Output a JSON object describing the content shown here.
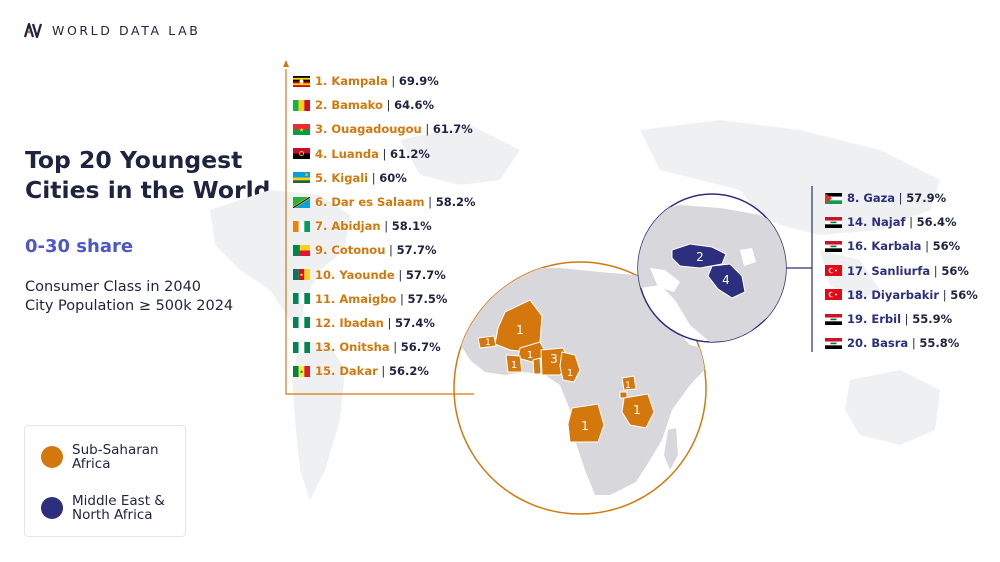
{
  "brand": {
    "name": "WORLD DATA LAB"
  },
  "heading": {
    "title": "Top 20 Youngest Cities in the World",
    "subtitle": "0-30 share"
  },
  "description": {
    "line1": "Consumer Class in 2040",
    "line2": "City Population ≥ 500k 2024"
  },
  "legend": [
    {
      "label": "Sub-Saharan Africa",
      "color": "#d4780d"
    },
    {
      "label": "Middle East & North Africa",
      "color": "#2b2f7e"
    }
  ],
  "colors": {
    "africa": "#d4780d",
    "mena": "#2b2f7e",
    "land": "#d8d8dc",
    "text": "#1e2340",
    "subtitle": "#4d57c9"
  },
  "map_counts": {
    "mali": "1",
    "coastal_west_africa": [
      "1",
      "1",
      "1"
    ],
    "nigeria": "3",
    "cameroon": "1",
    "angola": "1",
    "rwanda": "1",
    "tanzania": "1",
    "turkey": "2",
    "iraq": "4"
  },
  "sub_saharan_cities": [
    {
      "label": "1. Kampala",
      "value": "69.9%",
      "flag": "uganda"
    },
    {
      "label": "2. Bamako",
      "value": "64.6%",
      "flag": "mali"
    },
    {
      "label": "3. Ouagadougou",
      "value": "61.7%",
      "flag": "burkina-faso"
    },
    {
      "label": "4. Luanda",
      "value": "61.2%",
      "flag": "angola"
    },
    {
      "label": "5. Kigali",
      "value": "60%",
      "flag": "rwanda"
    },
    {
      "label": "6. Dar es Salaam",
      "value": "58.2%",
      "flag": "tanzania"
    },
    {
      "label": "7. Abidjan",
      "value": "58.1%",
      "flag": "ivory-coast"
    },
    {
      "label": "9. Cotonou",
      "value": "57.7%",
      "flag": "benin"
    },
    {
      "label": "10. Yaounde",
      "value": "57.7%",
      "flag": "cameroon"
    },
    {
      "label": "11. Amaigbo",
      "value": "57.5%",
      "flag": "nigeria"
    },
    {
      "label": "12. Ibadan",
      "value": "57.4%",
      "flag": "nigeria"
    },
    {
      "label": "13. Onitsha",
      "value": "56.7%",
      "flag": "nigeria"
    },
    {
      "label": "15. Dakar",
      "value": "56.2%",
      "flag": "senegal"
    }
  ],
  "mena_cities": [
    {
      "label": "8. Gaza",
      "value": "57.9%",
      "flag": "palestine"
    },
    {
      "label": "14. Najaf",
      "value": "56.4%",
      "flag": "iraq"
    },
    {
      "label": "16. Karbala",
      "value": "56%",
      "flag": "iraq"
    },
    {
      "label": "17. Sanliurfa",
      "value": "56%",
      "flag": "turkey"
    },
    {
      "label": "18. Diyarbakir",
      "value": "56%",
      "flag": "turkey"
    },
    {
      "label": "19. Erbil",
      "value": "55.9%",
      "flag": "iraq"
    },
    {
      "label": "20. Basra",
      "value": "55.8%",
      "flag": "iraq"
    }
  ]
}
